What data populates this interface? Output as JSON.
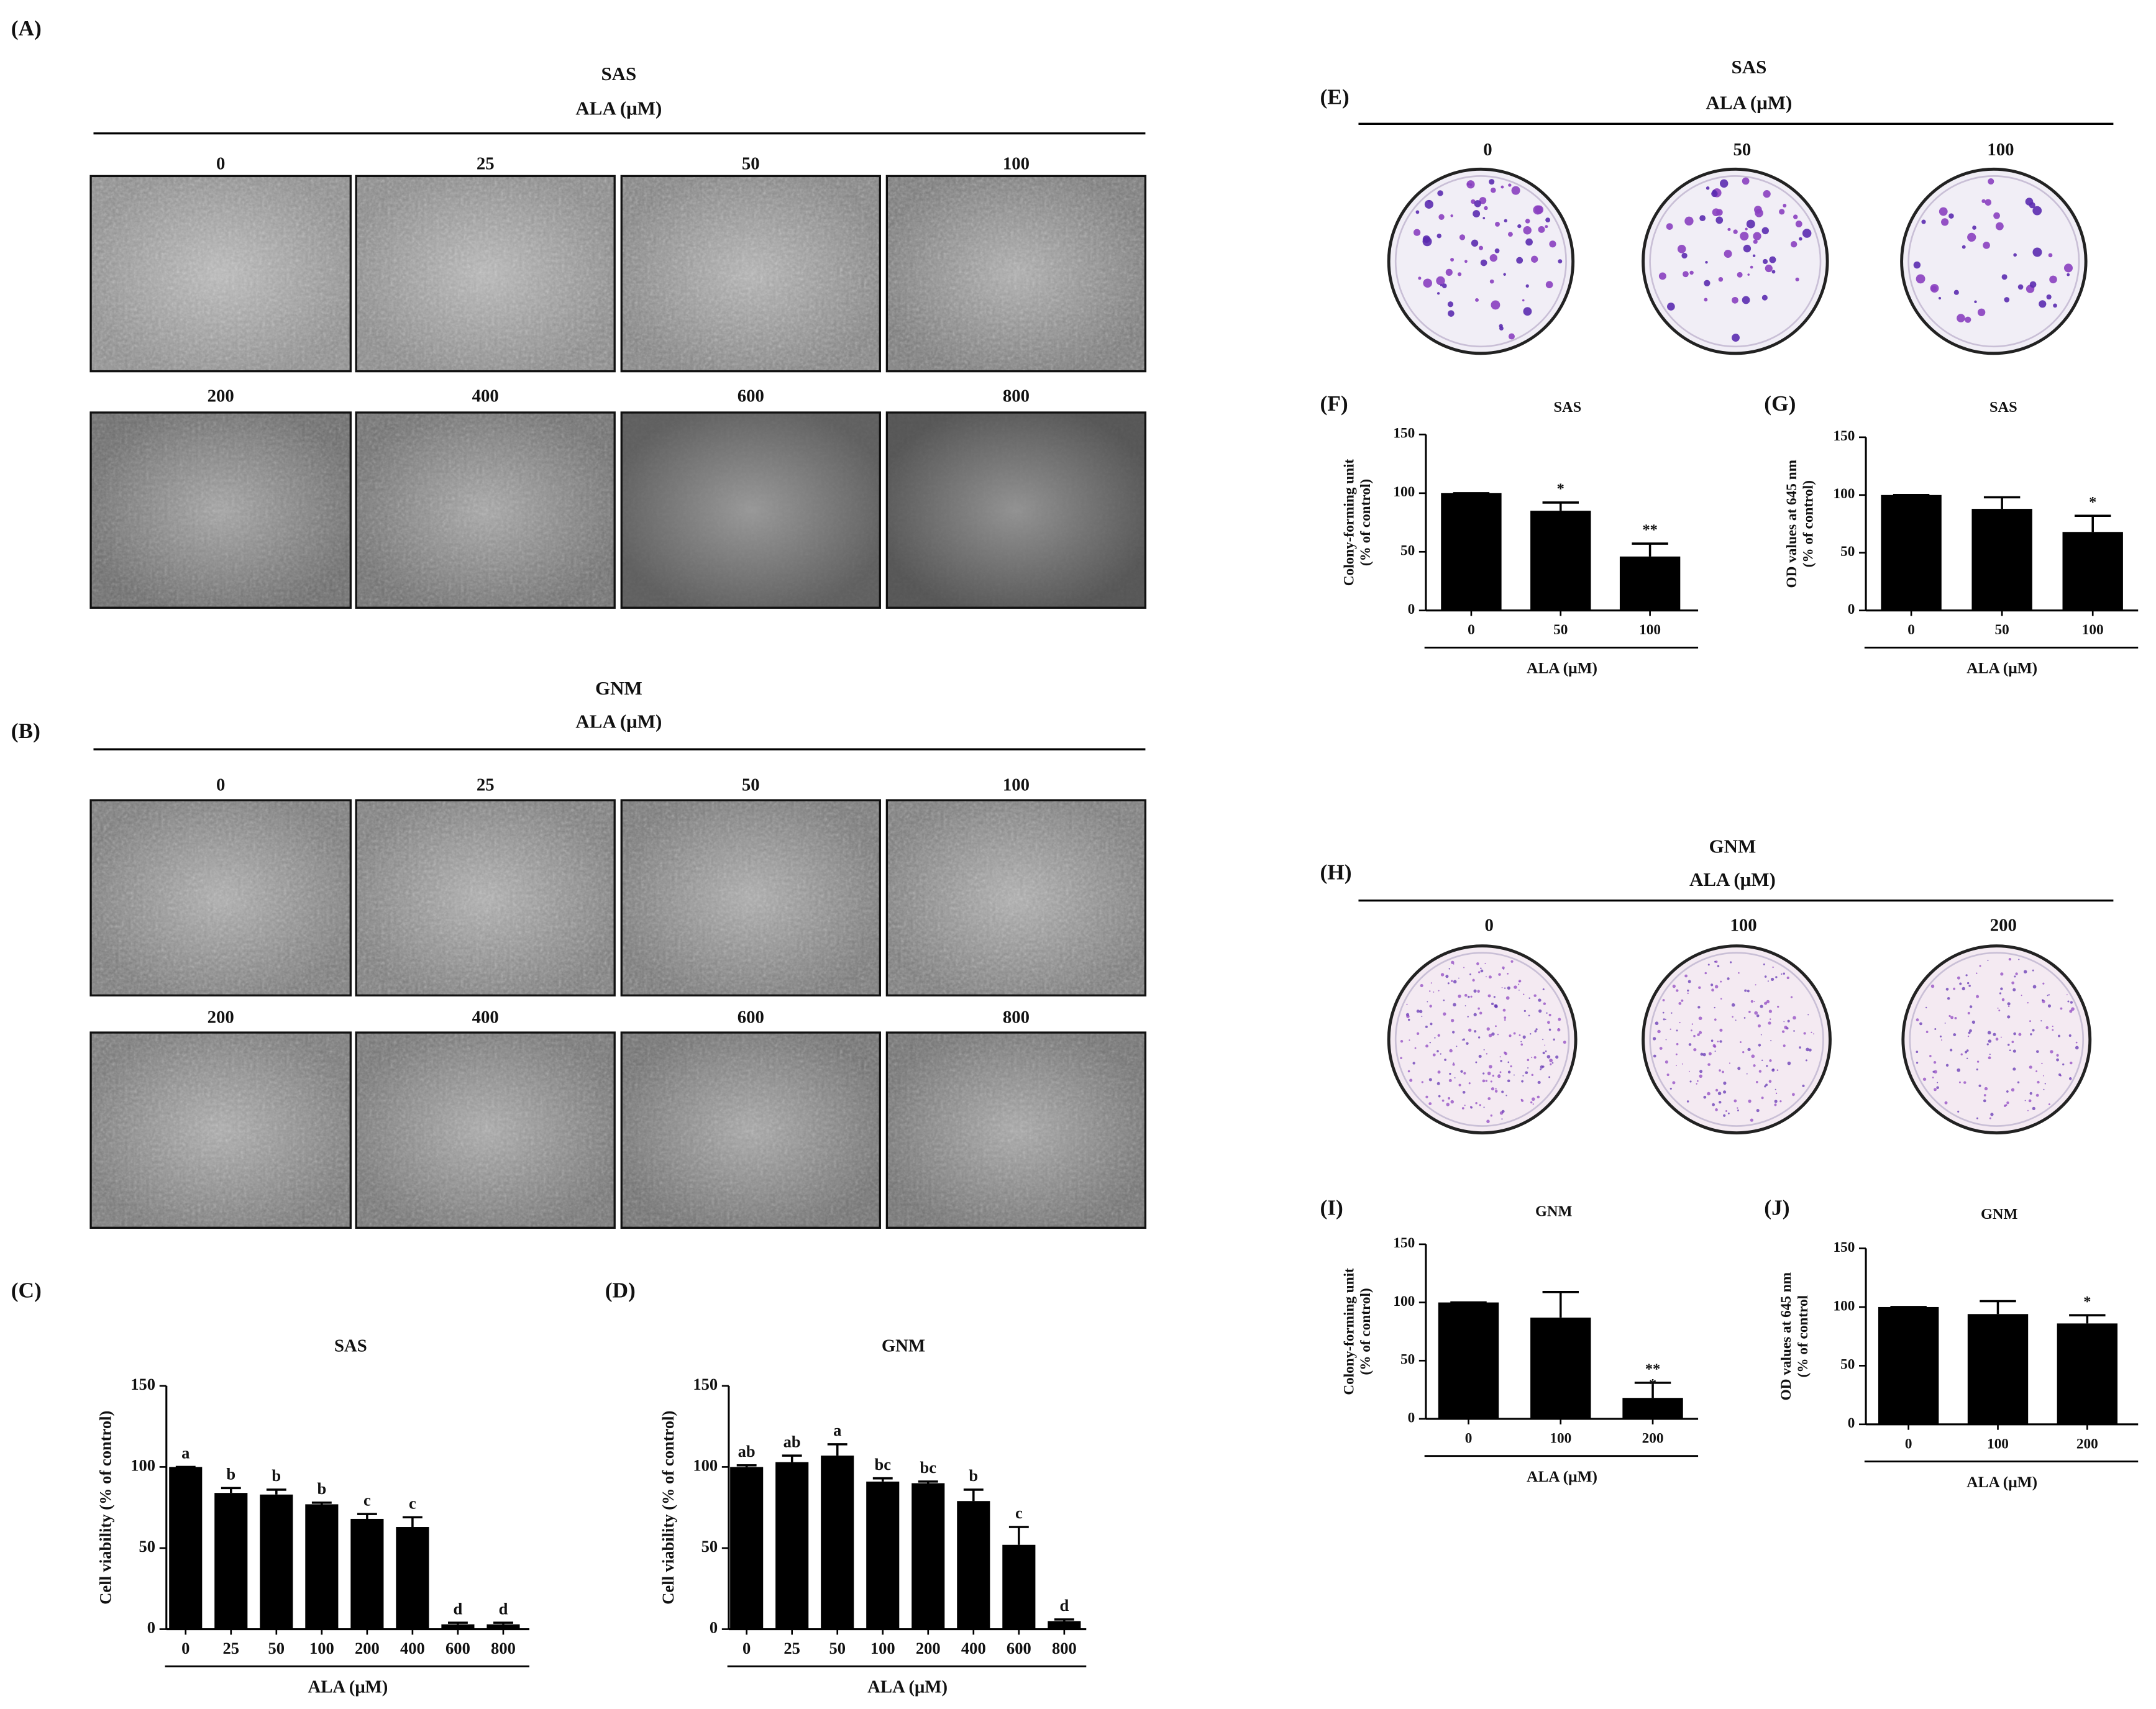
{
  "panels": {
    "A": {
      "label": "(A)",
      "cell_line": "SAS",
      "treatment": "ALA (μM)",
      "doses": [
        "0",
        "25",
        "50",
        "100",
        "200",
        "400",
        "600",
        "800"
      ]
    },
    "B": {
      "label": "(B)",
      "cell_line": "GNM",
      "treatment": "ALA (μM)",
      "doses": [
        "0",
        "25",
        "50",
        "100",
        "200",
        "400",
        "600",
        "800"
      ]
    },
    "E": {
      "label": "(E)",
      "cell_line": "SAS",
      "treatment": "ALA (μM)",
      "doses": [
        "0",
        "50",
        "100"
      ]
    },
    "H": {
      "label": "(H)",
      "cell_line": "GNM",
      "treatment": "ALA (μM)",
      "doses": [
        "0",
        "100",
        "200"
      ]
    }
  },
  "chart_data": [
    {
      "type": "bar",
      "panel_label": "(C)",
      "title": "SAS",
      "y_label": [
        "Cell viability (% of control)"
      ],
      "x_label": "ALA (μM)",
      "categories": [
        "0",
        "25",
        "50",
        "100",
        "200",
        "400",
        "600",
        "800"
      ],
      "values": [
        100,
        84,
        83,
        77,
        68,
        63,
        3,
        3
      ],
      "errors": [
        0,
        3,
        3,
        1,
        3,
        6,
        1,
        1
      ],
      "annotations": [
        [
          "a"
        ],
        [
          "b"
        ],
        [
          "b"
        ],
        [
          "b"
        ],
        [
          "c"
        ],
        [
          "c"
        ],
        [
          "d"
        ],
        [
          "d"
        ]
      ],
      "color": "#000000",
      "ylim": [
        0,
        150
      ],
      "yticks": [
        0,
        50,
        100,
        150
      ]
    },
    {
      "type": "bar",
      "panel_label": "(D)",
      "title": "GNM",
      "y_label": [
        "Cell viability (% of control)"
      ],
      "x_label": "ALA (μM)",
      "categories": [
        "0",
        "25",
        "50",
        "100",
        "200",
        "400",
        "600",
        "800"
      ],
      "values": [
        100,
        103,
        107,
        91,
        90,
        79,
        52,
        5
      ],
      "errors": [
        1,
        4,
        7,
        2,
        1,
        7,
        11,
        1
      ],
      "annotations": [
        [
          "ab"
        ],
        [
          "ab"
        ],
        [
          "a"
        ],
        [
          "bc"
        ],
        [
          "bc"
        ],
        [
          "b"
        ],
        [
          "c"
        ],
        [
          "d"
        ]
      ],
      "color": "#000000",
      "ylim": [
        0,
        150
      ],
      "yticks": [
        0,
        50,
        100,
        150
      ]
    },
    {
      "type": "bar",
      "panel_label": "(F)",
      "title": "SAS",
      "y_label": [
        "Colony-forming unit",
        "(% of control)"
      ],
      "x_label": "ALA (μM)",
      "categories": [
        "0",
        "50",
        "100"
      ],
      "values": [
        100,
        85,
        46
      ],
      "errors": [
        0,
        7,
        11
      ],
      "annotations": [
        [],
        [
          "*"
        ],
        [
          "**"
        ]
      ],
      "color": "#000000",
      "ylim": [
        0,
        150
      ],
      "yticks": [
        0,
        50,
        100,
        150
      ]
    },
    {
      "type": "bar",
      "panel_label": "(G)",
      "title": "SAS",
      "y_label": [
        "OD values at 645 nm",
        "(% of control)"
      ],
      "x_label": "ALA (μM)",
      "categories": [
        "0",
        "50",
        "100"
      ],
      "values": [
        100,
        88,
        68
      ],
      "errors": [
        0,
        10,
        14
      ],
      "annotations": [
        [],
        [],
        [
          "*"
        ]
      ],
      "color": "#000000",
      "ylim": [
        0,
        150
      ],
      "yticks": [
        0,
        50,
        100,
        150
      ]
    },
    {
      "type": "bar",
      "panel_label": "(I)",
      "title": "GNM",
      "y_label": [
        "Colony-forming unit",
        "(% of control)"
      ],
      "x_label": "ALA (μM)",
      "categories": [
        "0",
        "100",
        "200"
      ],
      "values": [
        100,
        87,
        18
      ],
      "errors": [
        0,
        22,
        13
      ],
      "annotations": [
        [],
        [],
        [
          "**",
          "*"
        ]
      ],
      "color": "#000000",
      "ylim": [
        0,
        150
      ],
      "yticks": [
        0,
        50,
        100,
        150
      ]
    },
    {
      "type": "bar",
      "panel_label": "(J)",
      "title": "GNM",
      "y_label": [
        "OD values at 645 nm",
        "(% of control"
      ],
      "x_label": "ALA (μM)",
      "categories": [
        "0",
        "100",
        "200"
      ],
      "values": [
        100,
        94,
        86
      ],
      "errors": [
        0,
        11,
        7
      ],
      "annotations": [
        [],
        [],
        [
          "*"
        ]
      ],
      "color": "#000000",
      "ylim": [
        0,
        150
      ],
      "yticks": [
        0,
        50,
        100,
        150
      ]
    }
  ]
}
